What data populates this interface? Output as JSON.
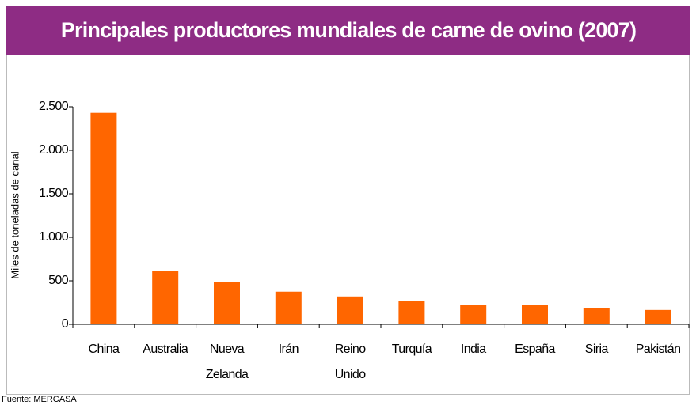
{
  "chart_data": {
    "type": "bar",
    "title": "Principales productores mundiales de carne de ovino (2007)",
    "ylabel": "Miles de toneladas de canal",
    "source": "Fuente: MERCASA",
    "categories": [
      "China",
      "Australia",
      "Nueva Zelanda",
      "Irán",
      "Reino Unido",
      "Turquía",
      "India",
      "España",
      "Siria",
      "Pakistán"
    ],
    "values": [
      2430,
      610,
      490,
      375,
      320,
      265,
      225,
      225,
      185,
      165
    ],
    "color": "#ff6600",
    "ylim": [
      0,
      2500
    ],
    "yticks": [
      0,
      500,
      {
        "value": 1000,
        "label": "1.000"
      },
      {
        "value": 1500,
        "label": "1.500"
      },
      {
        "value": 2000,
        "label": "2.000"
      },
      {
        "value": 2500,
        "label": "2.500"
      }
    ]
  }
}
